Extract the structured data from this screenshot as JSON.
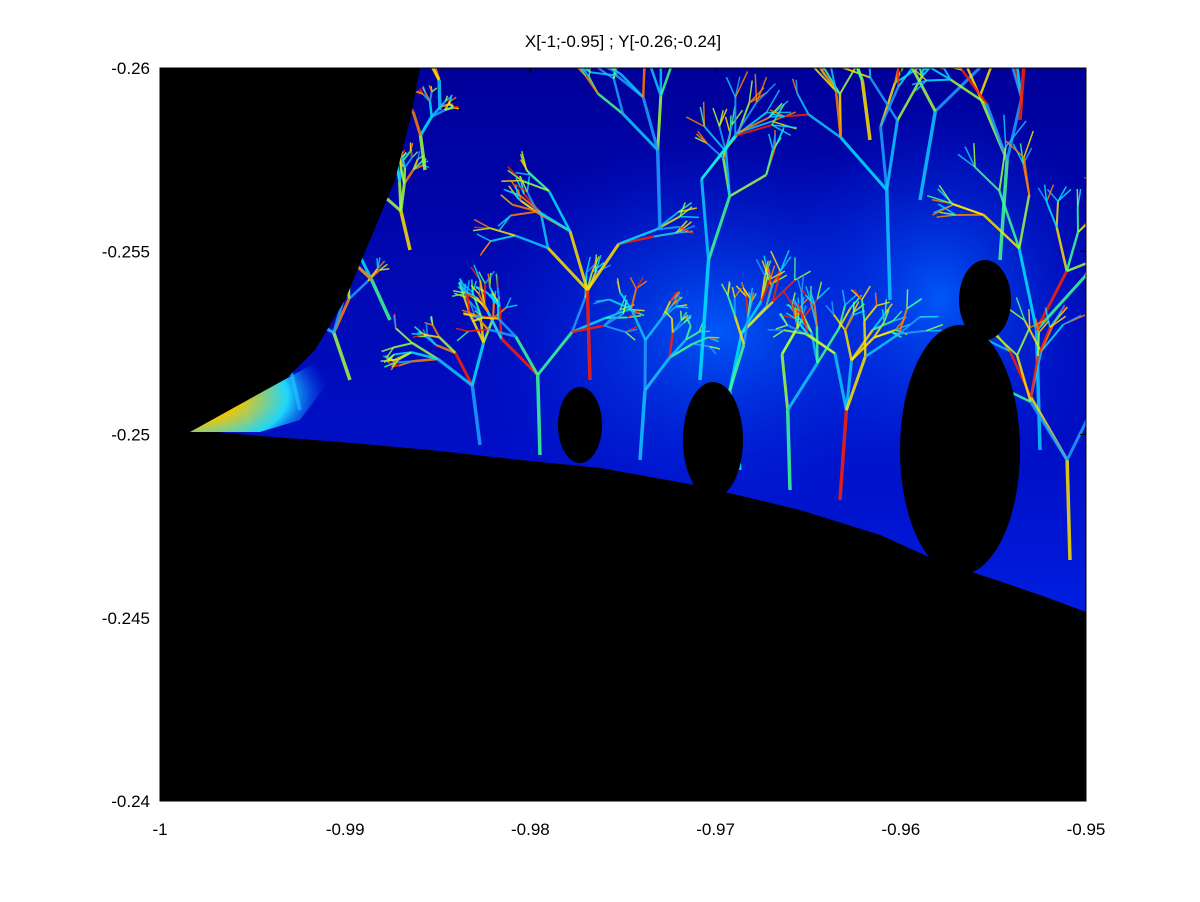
{
  "chart_data": {
    "type": "heatmap",
    "title": "X[-1;-0.95] ; Y[-0.26;-0.24]",
    "xlabel": "",
    "ylabel": "",
    "xlim": [
      -1,
      -0.95
    ],
    "ylim": [
      -0.26,
      -0.24
    ],
    "y_reversed": true,
    "colormap": "jet",
    "set_color": "#000000",
    "x_ticks": [
      {
        "value": -1,
        "label": "-1"
      },
      {
        "value": -0.99,
        "label": "-0.99"
      },
      {
        "value": -0.98,
        "label": "-0.98"
      },
      {
        "value": -0.97,
        "label": "-0.97"
      },
      {
        "value": -0.96,
        "label": "-0.96"
      },
      {
        "value": -0.95,
        "label": "-0.95"
      }
    ],
    "y_ticks": [
      {
        "value": -0.26,
        "label": "-0.26"
      },
      {
        "value": -0.255,
        "label": "-0.255"
      },
      {
        "value": -0.25,
        "label": "-0.25"
      },
      {
        "value": -0.245,
        "label": "-0.245"
      },
      {
        "value": -0.24,
        "label": "-0.24"
      }
    ],
    "grid": false,
    "legend": "none"
  }
}
